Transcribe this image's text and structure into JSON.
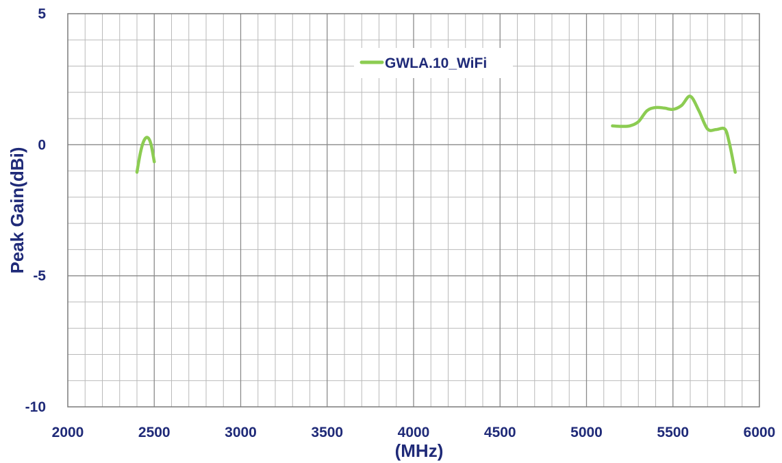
{
  "chart_data": {
    "type": "line",
    "xlabel": "(MHz)",
    "ylabel": "Peak Gain(dBi)",
    "xlim": [
      2000,
      6000
    ],
    "ylim": [
      -10,
      5
    ],
    "x_ticks": [
      2000,
      2500,
      3000,
      3500,
      4000,
      4500,
      5000,
      5500,
      6000
    ],
    "y_ticks": [
      5,
      0,
      -5,
      -10
    ],
    "x_minor_step": 100,
    "y_minor_step": 1,
    "grid": true,
    "legend_position": "top-center",
    "series": [
      {
        "name": "GWLA.10_WiFi",
        "color": "#8ccc52",
        "segments": [
          [
            [
              2400,
              -1.05
            ],
            [
              2420,
              -0.3
            ],
            [
              2440,
              0.15
            ],
            [
              2460,
              0.28
            ],
            [
              2480,
              0.05
            ],
            [
              2500,
              -0.65
            ]
          ],
          [
            [
              5150,
              0.72
            ],
            [
              5200,
              0.7
            ],
            [
              5250,
              0.72
            ],
            [
              5300,
              0.88
            ],
            [
              5350,
              1.3
            ],
            [
              5400,
              1.42
            ],
            [
              5450,
              1.4
            ],
            [
              5500,
              1.35
            ],
            [
              5550,
              1.5
            ],
            [
              5600,
              1.85
            ],
            [
              5650,
              1.3
            ],
            [
              5700,
              0.6
            ],
            [
              5750,
              0.58
            ],
            [
              5800,
              0.6
            ],
            [
              5825,
              0.1
            ],
            [
              5850,
              -0.7
            ],
            [
              5860,
              -1.05
            ]
          ]
        ]
      }
    ]
  }
}
